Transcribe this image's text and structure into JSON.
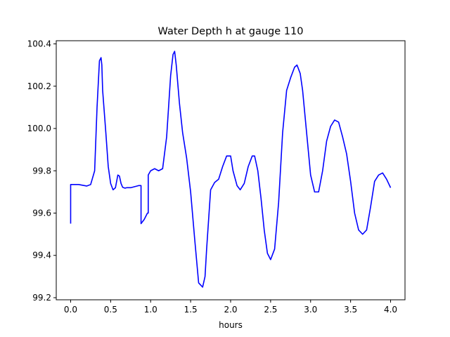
{
  "chart_data": {
    "type": "line",
    "title": "Water Depth h at gauge 110",
    "xlabel": "hours",
    "ylabel": "",
    "xlim": [
      -0.18,
      4.18
    ],
    "ylim": [
      99.19,
      100.415
    ],
    "xticks": [
      0.0,
      0.5,
      1.0,
      1.5,
      2.0,
      2.5,
      3.0,
      3.5,
      4.0
    ],
    "xtick_labels": [
      "0.0",
      "0.5",
      "1.0",
      "1.5",
      "2.0",
      "2.5",
      "3.0",
      "3.5",
      "4.0"
    ],
    "yticks": [
      99.2,
      99.4,
      99.6,
      99.8,
      100.0,
      100.2,
      100.4
    ],
    "ytick_labels": [
      "99.2",
      "99.4",
      "99.6",
      "99.8",
      "100.0",
      "100.2",
      "100.4"
    ],
    "grid": false,
    "series": [
      {
        "color": "#0000ff",
        "x": [
          0.0,
          0.0,
          0.1,
          0.2,
          0.25,
          0.3,
          0.33,
          0.36,
          0.38,
          0.39,
          0.4,
          0.42,
          0.44,
          0.47,
          0.5,
          0.53,
          0.56,
          0.59,
          0.61,
          0.63,
          0.65,
          0.68,
          0.7,
          0.75,
          0.8,
          0.85,
          0.88,
          0.88,
          0.92,
          0.96,
          0.97,
          0.97,
          1.0,
          1.05,
          1.1,
          1.15,
          1.2,
          1.25,
          1.28,
          1.3,
          1.32,
          1.36,
          1.4,
          1.45,
          1.5,
          1.55,
          1.6,
          1.65,
          1.68,
          1.7,
          1.75,
          1.8,
          1.85,
          1.9,
          1.95,
          2.0,
          2.03,
          2.08,
          2.12,
          2.17,
          2.22,
          2.27,
          2.3,
          2.34,
          2.38,
          2.42,
          2.46,
          2.5,
          2.55,
          2.6,
          2.65,
          2.7,
          2.75,
          2.8,
          2.83,
          2.87,
          2.9,
          2.95,
          3.0,
          3.05,
          3.1,
          3.15,
          3.2,
          3.25,
          3.3,
          3.35,
          3.4,
          3.45,
          3.5,
          3.55,
          3.6,
          3.65,
          3.7,
          3.75,
          3.8,
          3.85,
          3.9,
          3.95,
          4.0
        ],
        "y": [
          99.55,
          99.735,
          99.735,
          99.728,
          99.735,
          99.8,
          100.1,
          100.32,
          100.335,
          100.3,
          100.18,
          100.08,
          99.98,
          99.82,
          99.74,
          99.71,
          99.72,
          99.78,
          99.775,
          99.74,
          99.722,
          99.718,
          99.72,
          99.72,
          99.725,
          99.73,
          99.73,
          99.55,
          99.57,
          99.6,
          99.6,
          99.78,
          99.8,
          99.81,
          99.8,
          99.81,
          99.96,
          100.25,
          100.35,
          100.365,
          100.3,
          100.12,
          99.98,
          99.86,
          99.7,
          99.48,
          99.27,
          99.25,
          99.3,
          99.43,
          99.71,
          99.745,
          99.76,
          99.82,
          99.87,
          99.87,
          99.8,
          99.73,
          99.71,
          99.74,
          99.82,
          99.87,
          99.87,
          99.8,
          99.67,
          99.52,
          99.41,
          99.38,
          99.43,
          99.65,
          99.98,
          100.18,
          100.24,
          100.29,
          100.3,
          100.26,
          100.18,
          99.98,
          99.78,
          99.7,
          99.7,
          99.8,
          99.94,
          100.01,
          100.04,
          100.03,
          99.96,
          99.88,
          99.75,
          99.6,
          99.52,
          99.5,
          99.52,
          99.63,
          99.75,
          99.78,
          99.79,
          99.76,
          99.72
        ]
      }
    ]
  }
}
